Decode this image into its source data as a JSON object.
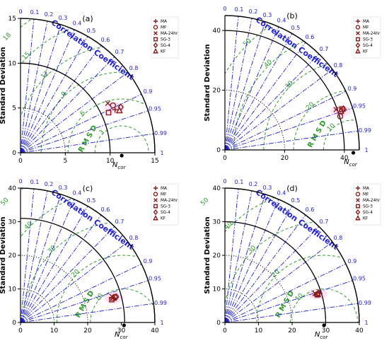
{
  "figure": {
    "marker_color": "#8b1a1a",
    "corr_color": "#1f1fd0",
    "rms_color": "#2e9a2e",
    "std_arc_color": "#000000",
    "highlight_color": "#ff8fd8"
  },
  "chart_data": [
    {
      "type": "scatter",
      "subtype": "taylor-diagram",
      "panel_label": "(a)",
      "ylabel": "Standard Deviation",
      "xlabel": "N",
      "xlabel_subscript": "cor",
      "corr_title": "Correlation Coefficient",
      "rms_label": "RMSD",
      "std_max": 15,
      "std_ticks": [
        0,
        5,
        10,
        15
      ],
      "std_arcs_solid": [
        10,
        15
      ],
      "std_arcs_dotted": [
        5
      ],
      "ref_std": 11.3,
      "corr_ticks": [
        "0",
        "0.1",
        "0.2",
        "0.3",
        "0.4",
        "0.5",
        "0.6",
        "0.7",
        "0.8",
        "0.9",
        "0.95",
        "0.99",
        "1"
      ],
      "rms_contours": [
        3,
        6,
        9,
        12,
        15,
        18
      ],
      "rms_labeled": [
        3,
        6,
        9,
        12,
        15,
        18
      ],
      "legend": [
        "MA",
        "MF",
        "MA-24hr",
        "SG-3",
        "SG-4",
        "KF"
      ],
      "series": [
        {
          "name": "MA",
          "std": 11.6,
          "corr": 0.91
        },
        {
          "name": "MF",
          "std": 11.6,
          "corr": 0.89
        },
        {
          "name": "MA-24hr",
          "std": 11.2,
          "corr": 0.87
        },
        {
          "name": "SG-3",
          "std": 10.8,
          "corr": 0.91
        },
        {
          "name": "SG-4",
          "std": 12.3,
          "corr": 0.91
        },
        {
          "name": "KF",
          "std": 12.0,
          "corr": 0.92
        }
      ]
    },
    {
      "type": "scatter",
      "subtype": "taylor-diagram",
      "panel_label": "(b)",
      "ylabel": "Standard Deviation",
      "xlabel": "N",
      "xlabel_subscript": "cor",
      "corr_title": "Correlation Coefficient",
      "rms_label": "RMSD",
      "std_max": 45,
      "std_ticks": [
        0,
        20,
        40
      ],
      "std_arcs_solid": [
        40,
        45
      ],
      "std_arcs_dotted": [
        20
      ],
      "ref_std": 43,
      "corr_ticks": [
        "0",
        "0.1",
        "0.2",
        "0.3",
        "0.4",
        "0.5",
        "0.6",
        "0.7",
        "0.8",
        "0.9",
        "0.95",
        "0.99",
        "1"
      ],
      "rms_contours": [
        10,
        20,
        30,
        40,
        50
      ],
      "rms_labeled": [
        10,
        20,
        30,
        40,
        50
      ],
      "legend": [
        "MA",
        "MF",
        "MA-24hr",
        "SG-3",
        "SG-4",
        "KF"
      ],
      "series": [
        {
          "name": "MA",
          "std": 41.5,
          "corr": 0.95
        },
        {
          "name": "MF",
          "std": 40.2,
          "corr": 0.96
        },
        {
          "name": "MA-24hr",
          "std": 39.6,
          "corr": 0.94
        },
        {
          "name": "SG-3",
          "std": 41.5,
          "corr": 0.944
        },
        {
          "name": "SG-4",
          "std": 42.0,
          "corr": 0.945
        },
        {
          "name": "KF",
          "std": 41.0,
          "corr": 0.948
        }
      ]
    },
    {
      "type": "scatter",
      "subtype": "taylor-diagram",
      "panel_label": "(c)",
      "ylabel": "Standard Deviation",
      "xlabel": "N",
      "xlabel_subscript": "cor",
      "corr_title": "Correlation Coefficient",
      "rms_label": "RMSD",
      "std_max": 40,
      "std_ticks": [
        0,
        10,
        20,
        30,
        40
      ],
      "std_arcs_solid": [
        31,
        40
      ],
      "std_arcs_dotted": [
        10,
        20
      ],
      "ref_std": 30.8,
      "corr_ticks": [
        "0",
        "0.1",
        "0.2",
        "0.3",
        "0.4",
        "0.5",
        "0.6",
        "0.7",
        "0.8",
        "0.9",
        "0.95",
        "0.99",
        "1"
      ],
      "rms_contours": [
        10,
        20,
        30,
        40,
        50
      ],
      "rms_labeled": [
        10,
        20,
        30,
        40,
        50
      ],
      "legend": [
        "MA",
        "MF",
        "MA-24hr",
        "SG-3",
        "SG-4",
        "KF"
      ],
      "series": [
        {
          "name": "MA",
          "std": 28.8,
          "corr": 0.968
        },
        {
          "name": "MF",
          "std": 29.0,
          "corr": 0.965
        },
        {
          "name": "MA-24hr",
          "std": 28.3,
          "corr": 0.962
        },
        {
          "name": "SG-3",
          "std": 28.0,
          "corr": 0.97
        },
        {
          "name": "SG-4",
          "std": 29.5,
          "corr": 0.966
        },
        {
          "name": "KF",
          "std": 28.6,
          "corr": 0.967
        }
      ]
    },
    {
      "type": "scatter",
      "subtype": "taylor-diagram",
      "panel_label": "(d)",
      "ylabel": "Standard Deviation",
      "xlabel": "N",
      "xlabel_subscript": "cor",
      "corr_title": "Correlation Coefficient",
      "rms_label": "RMSD",
      "std_max": 40,
      "std_ticks": [
        0,
        10,
        20,
        30,
        40
      ],
      "std_arcs_solid": [
        30,
        40
      ],
      "std_arcs_dotted": [
        10,
        20
      ],
      "ref_std": 29.5,
      "corr_ticks": [
        "0",
        "0.1",
        "0.2",
        "0.3",
        "0.4",
        "0.5",
        "0.6",
        "0.7",
        "0.8",
        "0.9",
        "0.95",
        "0.99",
        "1"
      ],
      "rms_contours": [
        10,
        20,
        30,
        40,
        50
      ],
      "rms_labeled": [
        10,
        20,
        30,
        40,
        50
      ],
      "legend": [
        "MA",
        "MF",
        "MA-24hr",
        "SG-3",
        "SG-4",
        "KF"
      ],
      "series": [
        {
          "name": "MA",
          "std": 29.5,
          "corr": 0.955
        },
        {
          "name": "MF",
          "std": 28.6,
          "corr": 0.957
        },
        {
          "name": "MA-24hr",
          "std": 28.2,
          "corr": 0.952
        },
        {
          "name": "SG-3",
          "std": 28.8,
          "corr": 0.958
        },
        {
          "name": "SG-4",
          "std": 29.2,
          "corr": 0.954
        },
        {
          "name": "KF",
          "std": 28.9,
          "corr": 0.956
        }
      ]
    }
  ]
}
